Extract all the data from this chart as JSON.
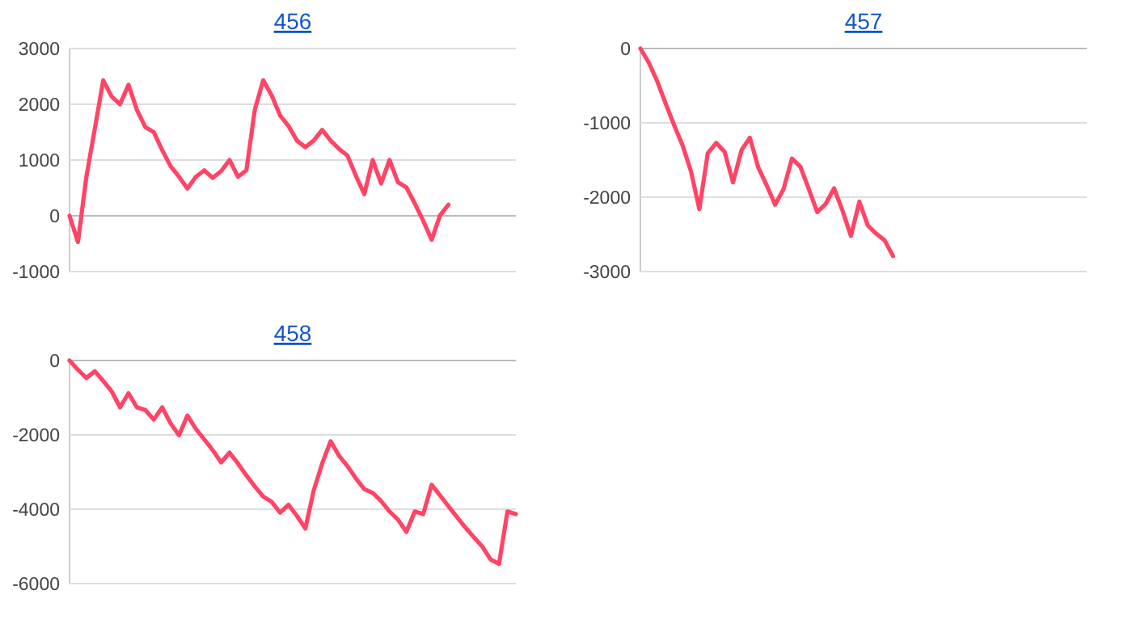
{
  "chart_data": [
    {
      "type": "line",
      "title": "456",
      "categories": [
        null,
        null,
        null,
        null,
        null,
        null,
        null,
        null,
        null,
        null,
        null,
        null,
        null,
        null,
        null,
        null,
        null,
        null,
        null,
        null,
        null,
        null,
        null,
        null,
        null,
        null,
        null,
        null,
        null,
        null,
        null,
        null,
        null,
        null,
        null,
        null,
        null,
        null,
        null,
        null,
        null,
        null,
        null,
        null,
        null,
        null,
        null,
        null,
        null,
        null,
        null,
        null,
        null,
        null
      ],
      "series": [
        {
          "color": "#ff4466",
          "values": [
            0,
            -470,
            700,
            1560,
            2430,
            2140,
            2000,
            2350,
            1900,
            1590,
            1500,
            1180,
            890,
            700,
            490,
            700,
            815,
            680,
            800,
            1000,
            700,
            815,
            1900,
            2430,
            2160,
            1800,
            1610,
            1350,
            1230,
            1350,
            1540,
            1350,
            1200,
            1080,
            720,
            390,
            1000,
            580,
            1000,
            600,
            510,
            220,
            -90,
            -430,
            10,
            200,
            null,
            null,
            null,
            null,
            null,
            null,
            null,
            null
          ]
        }
      ],
      "ylim": [
        -1000,
        3000
      ],
      "yticks": [
        -1000,
        0,
        1000,
        2000,
        3000
      ],
      "grid": "y",
      "tick_labels": "y"
    },
    {
      "type": "line",
      "title": "457",
      "categories": [
        null,
        null,
        null,
        null,
        null,
        null,
        null,
        null,
        null,
        null,
        null,
        null,
        null,
        null,
        null,
        null,
        null,
        null,
        null,
        null,
        null,
        null,
        null,
        null,
        null,
        null,
        null,
        null,
        null,
        null,
        null,
        null,
        null,
        null,
        null,
        null,
        null,
        null,
        null,
        null,
        null,
        null,
        null,
        null,
        null,
        null,
        null,
        null,
        null,
        null,
        null,
        null,
        null,
        null
      ],
      "series": [
        {
          "color": "#ff4466",
          "values": [
            0,
            -190,
            -440,
            -740,
            -1030,
            -1300,
            -1650,
            -2160,
            -1410,
            -1270,
            -1390,
            -1800,
            -1370,
            -1200,
            -1600,
            -1840,
            -2100,
            -1890,
            -1480,
            -1590,
            -1890,
            -2200,
            -2090,
            -1880,
            -2180,
            -2520,
            -2060,
            -2380,
            -2490,
            -2580,
            -2790,
            null,
            null,
            null,
            null,
            null,
            null,
            null,
            null,
            null,
            null,
            null,
            null,
            null,
            null,
            null,
            null,
            null,
            null,
            null,
            null,
            null,
            null,
            null
          ]
        }
      ],
      "ylim": [
        -3000,
        0
      ],
      "yticks": [
        -3000,
        -2000,
        -1000,
        0
      ],
      "grid": "y",
      "tick_labels": "y"
    },
    {
      "type": "line",
      "title": "458",
      "categories": [
        null,
        null,
        null,
        null,
        null,
        null,
        null,
        null,
        null,
        null,
        null,
        null,
        null,
        null,
        null,
        null,
        null,
        null,
        null,
        null,
        null,
        null,
        null,
        null,
        null,
        null,
        null,
        null,
        null,
        null,
        null,
        null,
        null,
        null,
        null,
        null,
        null,
        null,
        null,
        null,
        null,
        null,
        null,
        null,
        null,
        null,
        null,
        null,
        null,
        null,
        null,
        null,
        null,
        null
      ],
      "series": [
        {
          "color": "#ff4466",
          "values": [
            0,
            -250,
            -470,
            -290,
            -550,
            -830,
            -1260,
            -880,
            -1260,
            -1330,
            -1590,
            -1260,
            -1690,
            -2010,
            -1480,
            -1840,
            -2120,
            -2410,
            -2740,
            -2480,
            -2770,
            -3090,
            -3390,
            -3660,
            -3800,
            -4090,
            -3880,
            -4180,
            -4520,
            -3490,
            -2770,
            -2170,
            -2560,
            -2840,
            -3170,
            -3460,
            -3560,
            -3780,
            -4060,
            -4280,
            -4610,
            -4060,
            -4130,
            -3340,
            -3630,
            -3920,
            -4210,
            -4490,
            -4750,
            -5000,
            -5350,
            -5470,
            -4060,
            -4130
          ]
        }
      ],
      "ylim": [
        -6000,
        0
      ],
      "yticks": [
        -6000,
        -4000,
        -2000,
        0
      ],
      "grid": "y",
      "tick_labels": "y"
    }
  ]
}
